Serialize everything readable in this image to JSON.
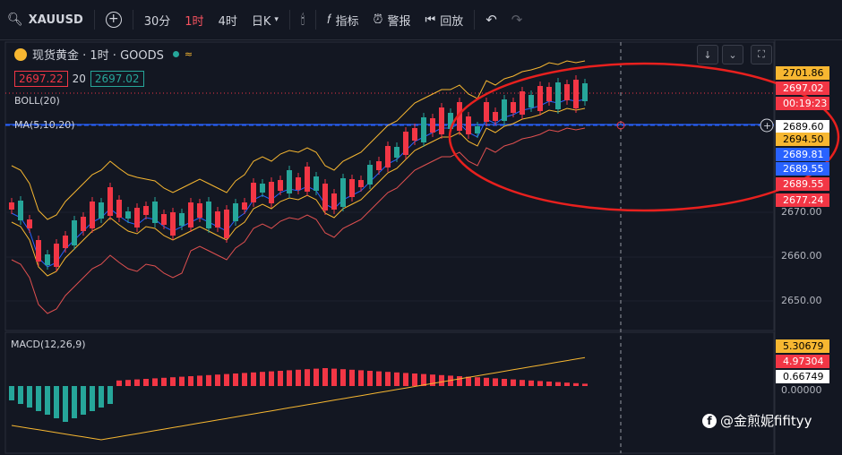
{
  "toolbar": {
    "symbol": "XAUUSD",
    "intervals": [
      "30分",
      "1时",
      "4时",
      "日K"
    ],
    "active_interval": "1时",
    "indicators_label": "指标",
    "alerts_label": "警报",
    "replay_label": "回放"
  },
  "legend": {
    "title": "现货黄金 · 1时 · GOODS",
    "bid": "2697.22",
    "spread": "20",
    "ask": "2697.02",
    "boll": "BOLL(20)",
    "ma": "MA(5,10,20)",
    "macd": "MACD(12,26,9)"
  },
  "price_axis": {
    "labels": [
      "2650.00",
      "2660.00",
      "2670.00"
    ],
    "tags": [
      {
        "text": "2701.86",
        "bg": "#f7b731",
        "fg": "#000000"
      },
      {
        "text": "2697.02",
        "bg": "#f23645",
        "fg": "#ffffff"
      },
      {
        "text": "00:19:23",
        "bg": "#f23645",
        "fg": "#ffffff"
      },
      {
        "text": "2689.60",
        "bg": "#ffffff",
        "fg": "#000000"
      },
      {
        "text": "2694.50",
        "bg": "#f7b731",
        "fg": "#000000"
      },
      {
        "text": "2689.81",
        "bg": "#2962ff",
        "fg": "#ffffff"
      },
      {
        "text": "2689.55",
        "bg": "#2962ff",
        "fg": "#ffffff"
      },
      {
        "text": "2689.55",
        "bg": "#f23645",
        "fg": "#ffffff"
      },
      {
        "text": "2677.24",
        "bg": "#f23645",
        "fg": "#ffffff"
      }
    ]
  },
  "macd_axis": {
    "tags": [
      {
        "text": "5.30679",
        "bg": "#f7b731",
        "fg": "#000000"
      },
      {
        "text": "4.97304",
        "bg": "#f23645",
        "fg": "#ffffff"
      },
      {
        "text": "0.66749",
        "bg": "#ffffff",
        "fg": "#000000"
      }
    ],
    "zero_label": "0.00000"
  },
  "watermark": "@金煎妮fifityy",
  "colors": {
    "up": "#f23645",
    "down": "#26a69a",
    "boll": "#f7b731",
    "ma": "#2962ff"
  }
}
